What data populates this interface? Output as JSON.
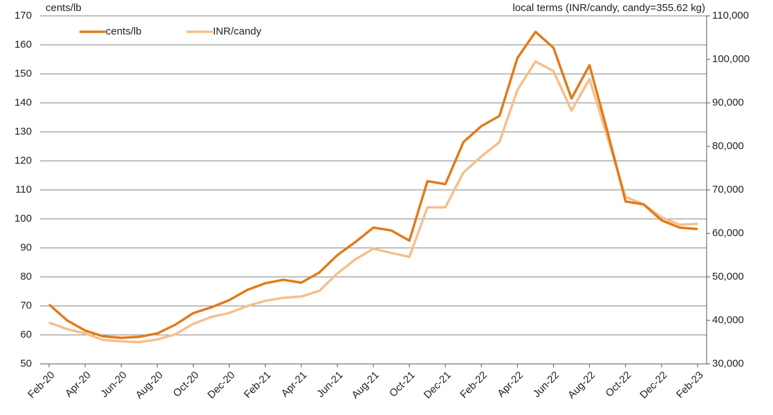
{
  "chart_data": {
    "type": "line",
    "y_label": "cents/lb",
    "y2_label": "local terms (INR/candy, candy=355.62 kg)",
    "categories": [
      "Feb-20",
      null,
      "Apr-20",
      null,
      "Jun-20",
      null,
      "Aug-20",
      null,
      "Oct-20",
      null,
      "Dec-20",
      null,
      "Feb-21",
      null,
      "Apr-21",
      null,
      "Jun-21",
      null,
      "Aug-21",
      null,
      "Oct-21",
      null,
      "Dec-21",
      null,
      "Feb-22",
      null,
      "Apr-22",
      null,
      "Jun-22",
      null,
      "Aug-22",
      null,
      "Oct-22",
      null,
      "Dec-22",
      null,
      "Feb-23"
    ],
    "series": [
      {
        "name": "cents/lb",
        "color": "#e07b1a",
        "values": [
          70.5,
          65,
          61.5,
          59.5,
          59,
          59.3,
          60.5,
          63.5,
          67.5,
          69.5,
          72,
          75.5,
          77.8,
          79,
          78,
          81.5,
          87.5,
          92,
          97,
          96,
          92.5,
          113,
          112,
          126.5,
          132,
          135.5,
          155.5,
          164.5,
          159,
          141.5,
          153,
          130,
          106,
          105,
          99.5,
          97,
          96.5
        ]
      },
      {
        "name": "INR/candy",
        "color": "#f6bf8c",
        "axis": "y2",
        "values": [
          39500,
          38000,
          37000,
          35500,
          35200,
          35000,
          35600,
          36800,
          39200,
          40800,
          41700,
          43300,
          44500,
          45200,
          45500,
          46800,
          50800,
          54000,
          56500,
          55500,
          54600,
          66000,
          66000,
          74000,
          77700,
          81000,
          93000,
          99500,
          97300,
          88200,
          95500,
          82000,
          68400,
          66700,
          63700,
          62000,
          62200
        ]
      }
    ],
    "ylim": [
      50,
      170
    ],
    "yticks": [
      50,
      60,
      70,
      80,
      90,
      100,
      110,
      120,
      130,
      140,
      150,
      160,
      170
    ],
    "y2lim": [
      30000,
      110000
    ],
    "y2ticks": [
      {
        "value": 30000,
        "label": "30,000"
      },
      {
        "value": 40000,
        "label": "40,000"
      },
      {
        "value": 50000,
        "label": "50,000"
      },
      {
        "value": 60000,
        "label": "60,000"
      },
      {
        "value": 70000,
        "label": "70,000"
      },
      {
        "value": 80000,
        "label": "80,000"
      },
      {
        "value": 90000,
        "label": "90,000"
      },
      {
        "value": 100000,
        "label": "100,000"
      },
      {
        "value": 110000,
        "label": "110,000"
      }
    ],
    "grid": true,
    "legend": "top-left"
  }
}
